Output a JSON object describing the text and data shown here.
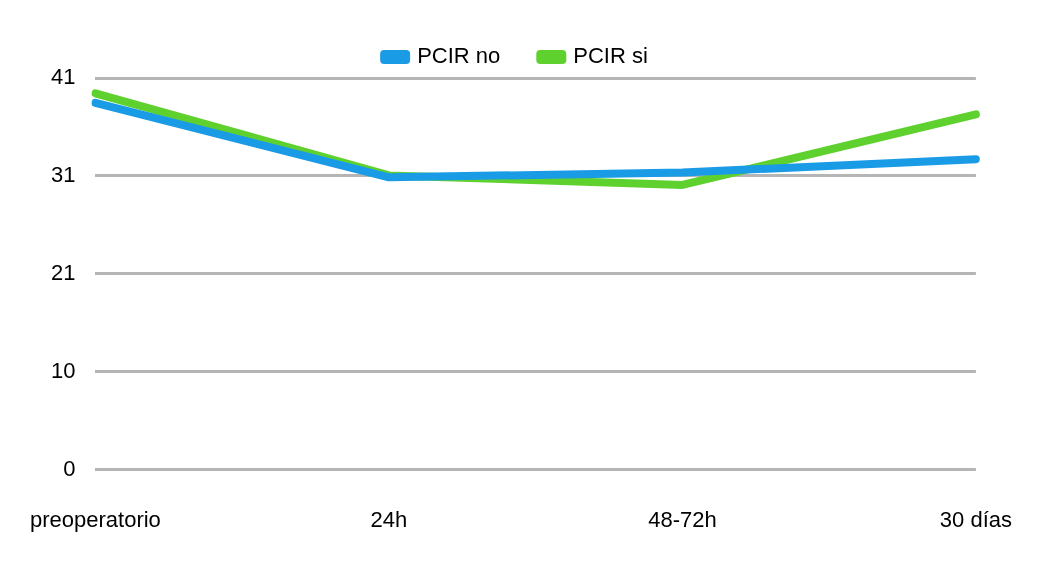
{
  "chart_data": {
    "type": "line",
    "categories": [
      "preoperatorio",
      "24h",
      "48-72h",
      "30 días"
    ],
    "series": [
      {
        "name": "PCIR no",
        "color": "#1a9be6",
        "values": [
          38.4,
          30.6,
          31.1,
          32.5
        ]
      },
      {
        "name": "PCIR si",
        "color": "#5fd12e",
        "values": [
          39.4,
          30.8,
          29.8,
          37.2
        ]
      }
    ],
    "ylim": [
      0,
      41
    ],
    "yticks": [
      0,
      {
        "value": 10.25,
        "label": "10"
      },
      {
        "value": 20.5,
        "label": "21"
      },
      {
        "value": 30.75,
        "label": "31"
      },
      41
    ],
    "grid": "y",
    "legend": "top",
    "marker": "none"
  }
}
